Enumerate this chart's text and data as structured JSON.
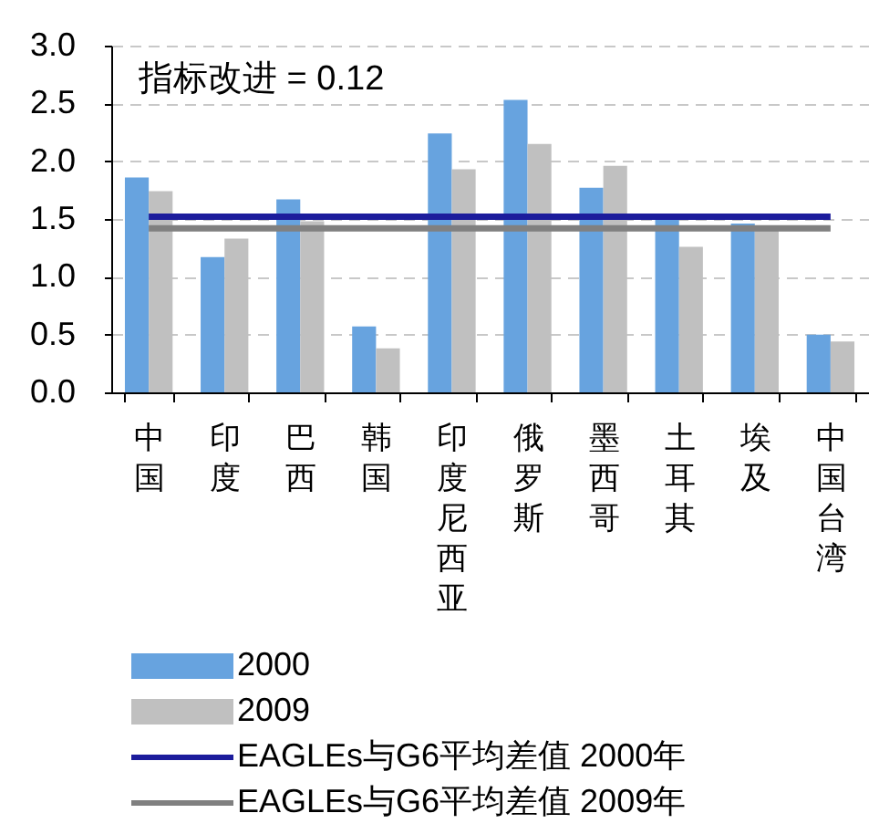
{
  "chart_data": {
    "type": "bar",
    "categories": [
      "中国",
      "印度",
      "巴西",
      "韩国",
      "印度尼西亚",
      "俄罗斯",
      "墨西哥",
      "土耳其",
      "埃及",
      "中国台湾"
    ],
    "series": [
      {
        "name": "2000",
        "color": "#67a3df",
        "values": [
          1.86,
          1.17,
          1.67,
          0.57,
          2.24,
          2.53,
          1.77,
          1.52,
          1.46,
          0.5
        ]
      },
      {
        "name": "2009",
        "color": "#c0c0c0",
        "values": [
          1.74,
          1.33,
          1.48,
          0.38,
          1.93,
          2.15,
          1.96,
          1.26,
          1.44,
          0.44
        ]
      },
      {
        "name": "EAGLEs与G6平均差值  2000年",
        "type": "line",
        "color": "#1c1c9c",
        "values": [
          1.52,
          1.52,
          1.52,
          1.52,
          1.52,
          1.52,
          1.52,
          1.52,
          1.52,
          1.52
        ]
      },
      {
        "name": "EAGLEs与G6平均差值  2009年",
        "type": "line",
        "color": "#808080",
        "values": [
          1.42,
          1.42,
          1.42,
          1.42,
          1.42,
          1.42,
          1.42,
          1.42,
          1.42,
          1.42
        ]
      }
    ],
    "ylim": [
      0,
      3
    ],
    "yticks": [
      {
        "value": 0,
        "label": "0.0"
      },
      {
        "value": 0.5,
        "label": "0.5"
      },
      {
        "value": 1,
        "label": "1.0"
      },
      {
        "value": 1.5,
        "label": "1.5"
      },
      {
        "value": 2,
        "label": "2.0"
      },
      {
        "value": 2.5,
        "label": "2.5"
      },
      {
        "value": 3,
        "label": "3.0"
      }
    ],
    "grid": "y",
    "legend": "bottom",
    "annotations": [
      "指标改进  = 0.12"
    ]
  }
}
